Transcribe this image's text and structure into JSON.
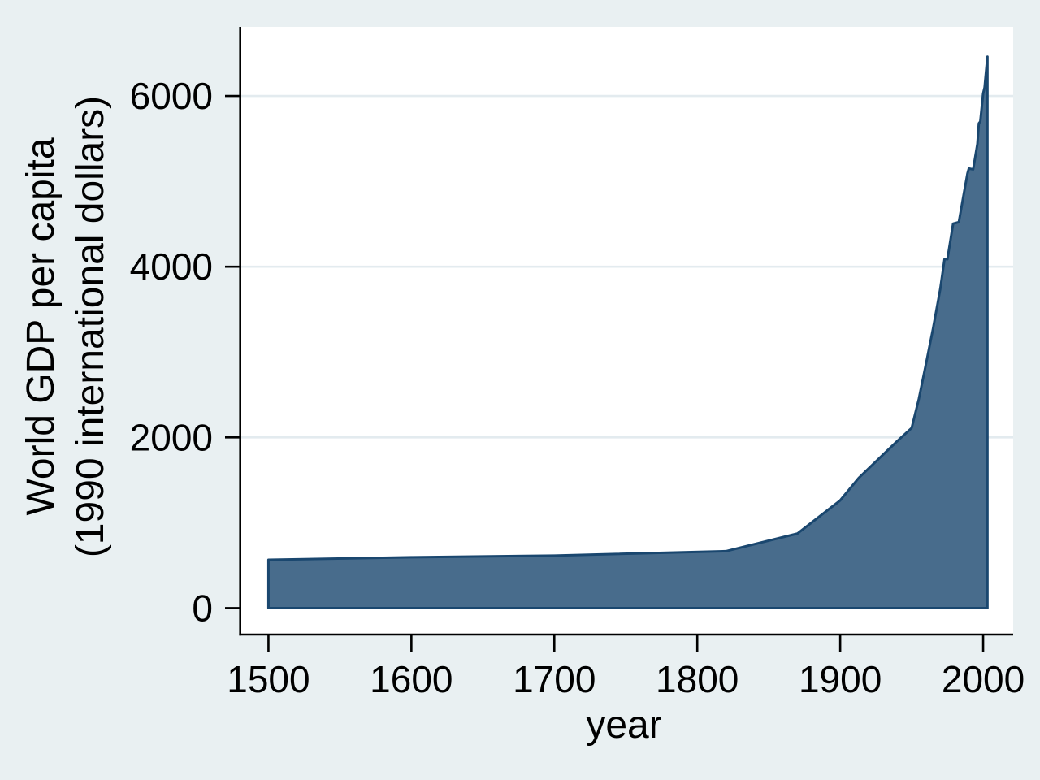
{
  "chart_data": {
    "type": "area",
    "title": "",
    "xlabel": "year",
    "ylabel_lines": [
      "World GDP per capita",
      "(1990 international dollars)"
    ],
    "series": [
      {
        "name": "World GDP per capita (1990 international dollars)",
        "points": [
          [
            1500,
            566
          ],
          [
            1600,
            596
          ],
          [
            1700,
            615
          ],
          [
            1820,
            667
          ],
          [
            1870,
            873
          ],
          [
            1900,
            1262
          ],
          [
            1913,
            1526
          ],
          [
            1940,
            1958
          ],
          [
            1950,
            2111
          ],
          [
            1955,
            2450
          ],
          [
            1960,
            2860
          ],
          [
            1965,
            3280
          ],
          [
            1970,
            3740
          ],
          [
            1973,
            4091
          ],
          [
            1975,
            4088
          ],
          [
            1979,
            4505
          ],
          [
            1983,
            4522
          ],
          [
            1986,
            4810
          ],
          [
            1989,
            5090
          ],
          [
            1990,
            5150
          ],
          [
            1993,
            5140
          ],
          [
            1996,
            5440
          ],
          [
            1997,
            5680
          ],
          [
            1998,
            5700
          ],
          [
            2000,
            6030
          ],
          [
            2001,
            6100
          ],
          [
            2003,
            6460
          ]
        ]
      }
    ],
    "x_ticks": [
      1500,
      1600,
      1700,
      1800,
      1900,
      2000
    ],
    "y_ticks": [
      0,
      2000,
      4000,
      6000
    ],
    "grid_ticks": [
      2000,
      4000,
      6000
    ],
    "xlim": [
      1481,
      2021
    ],
    "ylim": [
      -300,
      6810
    ],
    "baseline": 0,
    "grid": true,
    "legend": "none",
    "colors": {
      "area_fill": "#486c8c",
      "area_line": "#1a476f",
      "background": "#e9f0f2",
      "plot_background": "#ffffff",
      "gridline": "#e3ebef",
      "axis": "#000000",
      "text": "#000000"
    }
  }
}
